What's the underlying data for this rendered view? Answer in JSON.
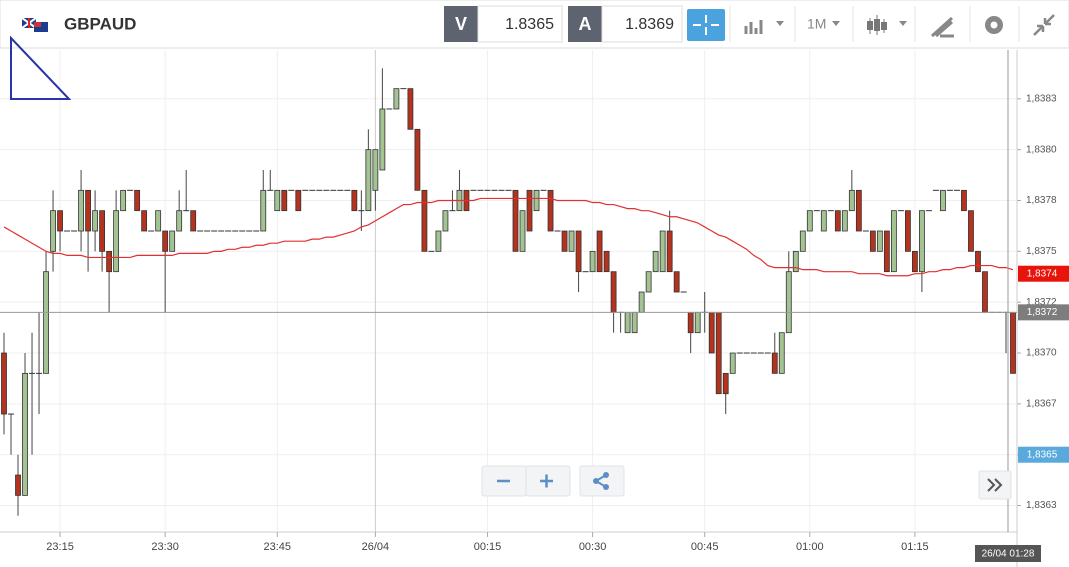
{
  "toolbar": {
    "symbol": "GBPAUD",
    "bid_label": "V",
    "bid": "1.8365",
    "ask_label": "A",
    "ask": "1.8369",
    "timeframe": "1M"
  },
  "chart_data": {
    "type": "candlestick",
    "up_color": "#a3c492",
    "down_color": "#b3331f",
    "ma_color": "#e03030",
    "grid": true,
    "ylim": [
      1.83612,
      1.83849
    ],
    "yticks": [
      {
        "value": 1.83625,
        "label": "1,8363"
      },
      {
        "value": 1.8365,
        "label": "1,8365"
      },
      {
        "value": 1.83675,
        "label": "1,8367"
      },
      {
        "value": 1.837,
        "label": "1,8370"
      },
      {
        "value": 1.83725,
        "label": "1,8372"
      },
      {
        "value": 1.8375,
        "label": "1,8375"
      },
      {
        "value": 1.83775,
        "label": "1,8378"
      },
      {
        "value": 1.838,
        "label": "1,8380"
      },
      {
        "value": 1.83825,
        "label": "1,8383"
      }
    ],
    "categories": [
      null,
      null,
      null,
      null,
      null,
      null,
      null,
      null,
      "23:15",
      null,
      null,
      null,
      null,
      null,
      null,
      null,
      null,
      null,
      null,
      null,
      null,
      null,
      null,
      "23:30",
      null,
      null,
      null,
      null,
      null,
      null,
      null,
      null,
      null,
      null,
      null,
      null,
      null,
      null,
      null,
      "23:45",
      null,
      null,
      null,
      null,
      null,
      null,
      null,
      null,
      null,
      null,
      null,
      null,
      null,
      "26/04",
      null,
      null,
      null,
      null,
      null,
      null,
      null,
      null,
      null,
      null,
      null,
      null,
      null,
      null,
      null,
      "00:15",
      null,
      null,
      null,
      null,
      null,
      null,
      null,
      null,
      null,
      null,
      null,
      null,
      null,
      null,
      "00:30",
      null,
      null,
      null,
      null,
      null,
      null,
      null,
      null,
      null,
      null,
      null,
      null,
      null,
      null,
      null,
      "00:45",
      null,
      null,
      null,
      null,
      null,
      null,
      null,
      null,
      null,
      null,
      null,
      null,
      null,
      null,
      "01:00",
      null,
      null,
      null,
      null,
      null,
      null,
      null,
      null,
      null,
      null,
      null,
      null,
      null,
      null,
      "01:15",
      null,
      null,
      null,
      null,
      null,
      null,
      null,
      null,
      null,
      null,
      null,
      null,
      null,
      null
    ],
    "candles": [
      [
        1.837,
        1.8371,
        1.8366,
        1.8367
      ],
      [
        1.8367,
        1.8367,
        1.8365,
        1.8367
      ],
      [
        1.8364,
        1.8365,
        1.8362,
        1.8363
      ],
      [
        1.8363,
        1.837,
        1.8363,
        1.8369
      ],
      [
        1.8369,
        1.8371,
        1.8365,
        1.8369
      ],
      [
        1.8369,
        1.8372,
        1.8367,
        1.8369
      ],
      [
        1.8369,
        1.8375,
        1.8369,
        1.8374
      ],
      [
        1.8375,
        1.8378,
        1.8374,
        1.8377
      ],
      [
        1.8377,
        1.8377,
        1.8375,
        1.8376
      ],
      [
        1.8376,
        1.8376,
        1.8376,
        1.8376
      ],
      [
        1.8376,
        1.8376,
        1.8376,
        1.8376
      ],
      [
        1.8376,
        1.8379,
        1.8375,
        1.8378
      ],
      [
        1.8378,
        1.8378,
        1.8374,
        1.8376
      ],
      [
        1.8376,
        1.8378,
        1.8375,
        1.8377
      ],
      [
        1.8377,
        1.8377,
        1.8374,
        1.8375
      ],
      [
        1.8375,
        1.8375,
        1.8372,
        1.8374
      ],
      [
        1.8374,
        1.8378,
        1.8374,
        1.8377
      ],
      [
        1.8377,
        1.8378,
        1.8377,
        1.8378
      ],
      [
        1.8378,
        1.8378,
        1.8378,
        1.8378
      ],
      [
        1.8378,
        1.8378,
        1.8377,
        1.8377
      ],
      [
        1.8377,
        1.8377,
        1.8376,
        1.8376
      ],
      [
        1.8376,
        1.8376,
        1.8376,
        1.8376
      ],
      [
        1.8376,
        1.8377,
        1.8376,
        1.8377
      ],
      [
        1.8376,
        1.8376,
        1.8372,
        1.8375
      ],
      [
        1.8375,
        1.8376,
        1.8375,
        1.8376
      ],
      [
        1.8376,
        1.8378,
        1.8376,
        1.8377
      ],
      [
        1.8377,
        1.8379,
        1.8377,
        1.8377
      ],
      [
        1.8377,
        1.8377,
        1.8376,
        1.8376
      ],
      [
        1.8376,
        1.8376,
        1.8376,
        1.8376
      ],
      [
        1.8376,
        1.8376,
        1.8376,
        1.8376
      ],
      [
        1.8376,
        1.8376,
        1.8376,
        1.8376
      ],
      [
        1.8376,
        1.8376,
        1.8376,
        1.8376
      ],
      [
        1.8376,
        1.8376,
        1.8376,
        1.8376
      ],
      [
        1.8376,
        1.8376,
        1.8376,
        1.8376
      ],
      [
        1.8376,
        1.8376,
        1.8376,
        1.8376
      ],
      [
        1.8376,
        1.8376,
        1.8376,
        1.8376
      ],
      [
        1.8376,
        1.8376,
        1.8376,
        1.8376
      ],
      [
        1.8376,
        1.8379,
        1.8376,
        1.8378
      ],
      [
        1.8378,
        1.8379,
        1.8378,
        1.8378
      ],
      [
        1.8377,
        1.8378,
        1.8377,
        1.8378
      ],
      [
        1.8378,
        1.8378,
        1.8377,
        1.8377
      ],
      [
        1.8378,
        1.8378,
        1.8378,
        1.8378
      ],
      [
        1.8378,
        1.8378,
        1.8377,
        1.8377
      ],
      [
        1.8378,
        1.8378,
        1.8378,
        1.8378
      ],
      [
        1.8378,
        1.8378,
        1.8378,
        1.8378
      ],
      [
        1.8378,
        1.8378,
        1.8378,
        1.8378
      ],
      [
        1.8378,
        1.8378,
        1.8378,
        1.8378
      ],
      [
        1.8378,
        1.8378,
        1.8378,
        1.8378
      ],
      [
        1.8378,
        1.8378,
        1.8378,
        1.8378
      ],
      [
        1.8378,
        1.8378,
        1.8378,
        1.8378
      ],
      [
        1.8378,
        1.8378,
        1.8377,
        1.8377
      ],
      [
        1.8377,
        1.8378,
        1.8376,
        1.8377
      ],
      [
        1.8377,
        1.8381,
        1.8377,
        1.838
      ],
      [
        1.8378,
        1.838,
        1.8377,
        1.838
      ],
      [
        1.8379,
        1.8384,
        1.8379,
        1.8382
      ],
      [
        1.8382,
        1.8382,
        1.8382,
        1.8382
      ],
      [
        1.8382,
        1.8383,
        1.8382,
        1.8383
      ],
      [
        1.8383,
        1.8383,
        1.8383,
        1.8383
      ],
      [
        1.8383,
        1.8383,
        1.8381,
        1.8381
      ],
      [
        1.8381,
        1.8381,
        1.8378,
        1.8378
      ],
      [
        1.8378,
        1.8378,
        1.8375,
        1.8375
      ],
      [
        1.8375,
        1.8375,
        1.8375,
        1.8375
      ],
      [
        1.8375,
        1.8376,
        1.8375,
        1.8376
      ],
      [
        1.8376,
        1.8377,
        1.8376,
        1.8377
      ],
      [
        1.8377,
        1.8378,
        1.8377,
        1.8377
      ],
      [
        1.8377,
        1.8379,
        1.8377,
        1.8378
      ],
      [
        1.8378,
        1.8378,
        1.8377,
        1.8377
      ],
      [
        1.8378,
        1.8378,
        1.8378,
        1.8378
      ],
      [
        1.8378,
        1.8378,
        1.8378,
        1.8378
      ],
      [
        1.8378,
        1.8378,
        1.8378,
        1.8378
      ],
      [
        1.8378,
        1.8378,
        1.8378,
        1.8378
      ],
      [
        1.8378,
        1.8378,
        1.8378,
        1.8378
      ],
      [
        1.8378,
        1.8378,
        1.8378,
        1.8378
      ],
      [
        1.8378,
        1.8378,
        1.8375,
        1.8375
      ],
      [
        1.8375,
        1.8377,
        1.8375,
        1.8377
      ],
      [
        1.8378,
        1.8378,
        1.8376,
        1.8376
      ],
      [
        1.8377,
        1.8378,
        1.8377,
        1.8378
      ],
      [
        1.8378,
        1.8378,
        1.8378,
        1.8378
      ],
      [
        1.8378,
        1.8378,
        1.8376,
        1.8376
      ],
      [
        1.8376,
        1.8376,
        1.8376,
        1.8376
      ],
      [
        1.8376,
        1.8376,
        1.8375,
        1.8375
      ],
      [
        1.8375,
        1.8376,
        1.8375,
        1.8376
      ],
      [
        1.8376,
        1.8376,
        1.8373,
        1.8374
      ],
      [
        1.8374,
        1.8374,
        1.8374,
        1.8374
      ],
      [
        1.8374,
        1.8375,
        1.8374,
        1.8375
      ],
      [
        1.8376,
        1.8376,
        1.8374,
        1.8374
      ],
      [
        1.8375,
        1.8375,
        1.8374,
        1.8374
      ],
      [
        1.8374,
        1.8374,
        1.8371,
        1.8372
      ],
      [
        1.8372,
        1.8372,
        1.8371,
        1.8372
      ],
      [
        1.8371,
        1.8372,
        1.8371,
        1.8372
      ],
      [
        1.8371,
        1.8372,
        1.8371,
        1.8372
      ],
      [
        1.8372,
        1.8373,
        1.8372,
        1.8373
      ],
      [
        1.8373,
        1.8374,
        1.8373,
        1.8374
      ],
      [
        1.8374,
        1.8375,
        1.8374,
        1.8375
      ],
      [
        1.8374,
        1.8376,
        1.8374,
        1.8376
      ],
      [
        1.8376,
        1.8377,
        1.8374,
        1.8374
      ],
      [
        1.8374,
        1.8374,
        1.8373,
        1.8373
      ],
      [
        1.8373,
        1.8373,
        1.8373,
        1.8373
      ],
      [
        1.8372,
        1.8372,
        1.837,
        1.8371
      ],
      [
        1.8371,
        1.8372,
        1.8371,
        1.8372
      ],
      [
        1.8372,
        1.8373,
        1.8371,
        1.8372
      ],
      [
        1.8372,
        1.8372,
        1.837,
        1.837
      ],
      [
        1.8372,
        1.8372,
        1.8368,
        1.8368
      ],
      [
        1.8369,
        1.8369,
        1.8367,
        1.8368
      ],
      [
        1.8369,
        1.837,
        1.8369,
        1.837
      ],
      [
        1.837,
        1.837,
        1.837,
        1.837
      ],
      [
        1.837,
        1.837,
        1.837,
        1.837
      ],
      [
        1.837,
        1.837,
        1.837,
        1.837
      ],
      [
        1.837,
        1.837,
        1.837,
        1.837
      ],
      [
        1.837,
        1.837,
        1.837,
        1.837
      ],
      [
        1.837,
        1.8371,
        1.8369,
        1.8369
      ],
      [
        1.8369,
        1.8371,
        1.8369,
        1.8371
      ],
      [
        1.8371,
        1.8375,
        1.8371,
        1.8374
      ],
      [
        1.8374,
        1.8375,
        1.8374,
        1.8375
      ],
      [
        1.8375,
        1.8376,
        1.8375,
        1.8376
      ],
      [
        1.8376,
        1.8377,
        1.8376,
        1.8377
      ],
      [
        1.8377,
        1.8377,
        1.8377,
        1.8377
      ],
      [
        1.8376,
        1.8377,
        1.8376,
        1.8377
      ],
      [
        1.8377,
        1.8377,
        1.8377,
        1.8377
      ],
      [
        1.8377,
        1.8377,
        1.8376,
        1.8376
      ],
      [
        1.8376,
        1.8377,
        1.8376,
        1.8377
      ],
      [
        1.8377,
        1.8379,
        1.8377,
        1.8378
      ],
      [
        1.8378,
        1.8378,
        1.8376,
        1.8376
      ],
      [
        1.8376,
        1.8376,
        1.8376,
        1.8376
      ],
      [
        1.8376,
        1.8376,
        1.8375,
        1.8375
      ],
      [
        1.8375,
        1.8376,
        1.8375,
        1.8376
      ],
      [
        1.8376,
        1.8376,
        1.8374,
        1.8374
      ],
      [
        1.8374,
        1.8377,
        1.8374,
        1.8377
      ],
      [
        1.8377,
        1.8377,
        1.8377,
        1.8377
      ],
      [
        1.8377,
        1.8377,
        1.8375,
        1.8375
      ],
      [
        1.8375,
        1.8375,
        1.8374,
        1.8374
      ],
      [
        1.8374,
        1.8377,
        1.8373,
        1.8377
      ],
      [
        1.8377,
        1.8377,
        1.8377,
        1.8377
      ],
      [
        1.8378,
        1.8378,
        1.8378,
        1.8378
      ],
      [
        1.8377,
        1.8378,
        1.8377,
        1.8378
      ],
      [
        1.8378,
        1.8378,
        1.8378,
        1.8378
      ],
      [
        1.8378,
        1.8378,
        1.8378,
        1.8378
      ],
      [
        1.8378,
        1.8378,
        1.8377,
        1.8377
      ],
      [
        1.8377,
        1.8377,
        1.8375,
        1.8375
      ],
      [
        1.8375,
        1.8375,
        1.8374,
        1.8374
      ],
      [
        1.8374,
        1.8374,
        1.8372,
        1.8372
      ],
      [
        1.8372,
        1.8372,
        1.8372,
        1.8372
      ],
      [
        1.8372,
        1.8372,
        1.8372,
        1.8372
      ],
      [
        1.8372,
        1.8372,
        1.837,
        1.8372
      ],
      [
        1.8372,
        1.8372,
        1.8369,
        1.8369
      ]
    ],
    "ma": [
      1.83762,
      1.8376,
      1.83758,
      1.83756,
      1.83754,
      1.83752,
      1.8375,
      1.83749,
      1.83749,
      1.83748,
      1.83748,
      1.83748,
      1.83747,
      1.83747,
      1.83747,
      1.83747,
      1.83747,
      1.83747,
      1.83747,
      1.83748,
      1.83748,
      1.83748,
      1.83748,
      1.83748,
      1.83748,
      1.83749,
      1.83749,
      1.83749,
      1.83749,
      1.83749,
      1.8375,
      1.8375,
      1.83751,
      1.83751,
      1.83752,
      1.83752,
      1.83753,
      1.83753,
      1.83754,
      1.83754,
      1.83755,
      1.83755,
      1.83755,
      1.83755,
      1.83756,
      1.83756,
      1.83757,
      1.83757,
      1.83758,
      1.83759,
      1.8376,
      1.83762,
      1.83763,
      1.83765,
      1.83767,
      1.83769,
      1.83771,
      1.83773,
      1.83773,
      1.83774,
      1.83774,
      1.83774,
      1.83775,
      1.83775,
      1.83775,
      1.83775,
      1.83775,
      1.83775,
      1.83776,
      1.83776,
      1.83776,
      1.83776,
      1.83776,
      1.83776,
      1.83776,
      1.83776,
      1.83776,
      1.83776,
      1.83776,
      1.83775,
      1.83775,
      1.83775,
      1.83775,
      1.83775,
      1.83774,
      1.83774,
      1.83773,
      1.83773,
      1.83772,
      1.83771,
      1.83771,
      1.8377,
      1.8377,
      1.83769,
      1.83768,
      1.83767,
      1.83767,
      1.83766,
      1.83765,
      1.83764,
      1.83762,
      1.8376,
      1.83758,
      1.83757,
      1.83755,
      1.83753,
      1.83751,
      1.83748,
      1.83746,
      1.83743,
      1.83742,
      1.83742,
      1.83742,
      1.83742,
      1.83741,
      1.83741,
      1.83741,
      1.8374,
      1.8374,
      1.8374,
      1.8374,
      1.8374,
      1.83739,
      1.83739,
      1.83739,
      1.83739,
      1.83738,
      1.83738,
      1.83738,
      1.83738,
      1.83739,
      1.83739,
      1.8374,
      1.8374,
      1.83741,
      1.83741,
      1.83742,
      1.83742,
      1.83743,
      1.83743,
      1.83743,
      1.83743,
      1.83742,
      1.83742,
      1.83741
    ],
    "price_markers": [
      {
        "value": 1.83739,
        "label": "1,8374",
        "color": "#e8140c"
      },
      {
        "value": 1.8372,
        "label": "1,8372",
        "color": "#7d7d7d"
      },
      {
        "value": 1.8365,
        "label": "1,8365",
        "color": "#5aa9dc"
      }
    ],
    "cursor_label": "26/04 01:28"
  }
}
